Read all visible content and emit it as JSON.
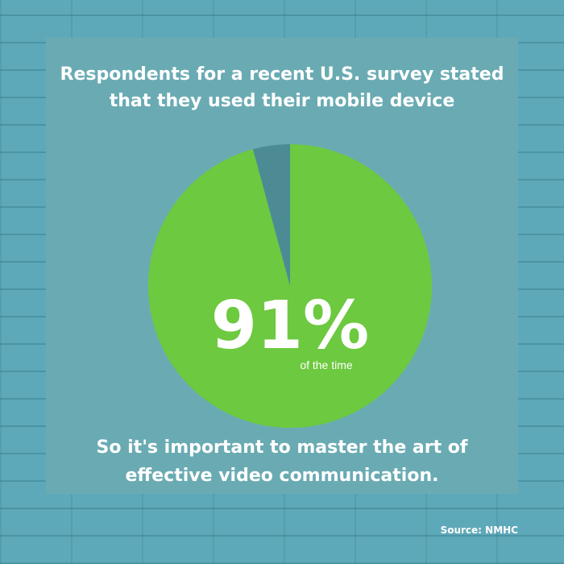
{
  "chart_data": {
    "type": "pie",
    "title": "Respondents for a recent U.S. survey stated that they used their mobile device",
    "values": [
      91,
      4
    ],
    "value_labels": [
      "91%",
      null
    ],
    "value_sublabel": "of the time",
    "colors": [
      "#6dc93f",
      "#4c8b93"
    ],
    "caption": "So it's important to master the art of effective video communication.",
    "source": "Source: NMHC"
  }
}
